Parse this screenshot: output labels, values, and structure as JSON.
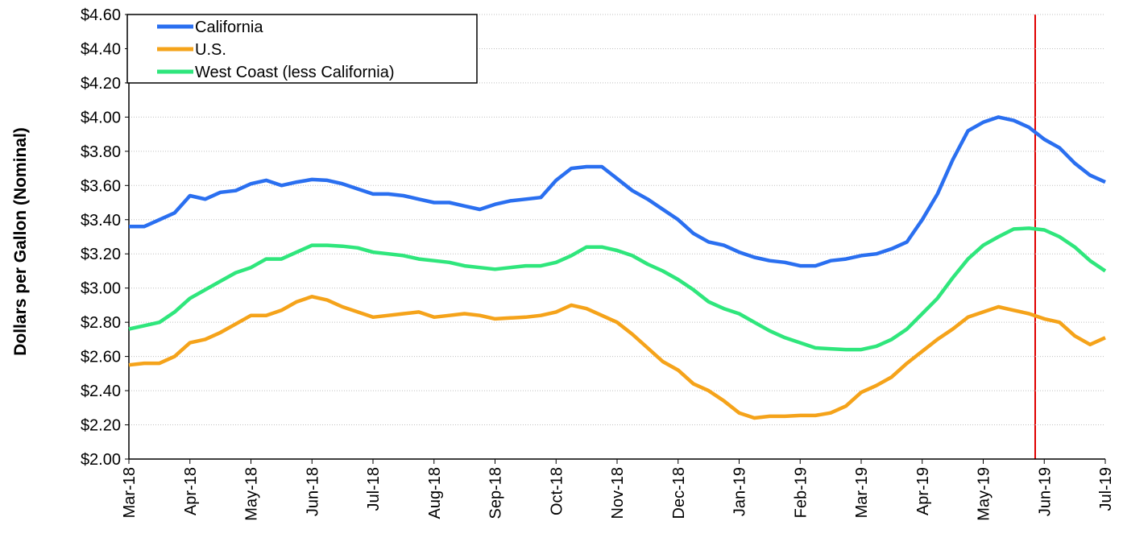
{
  "chart_data": {
    "type": "line",
    "y_label": "Dollars per Gallon (Nominal)",
    "categories": [
      "Mar-18",
      null,
      null,
      null,
      "Apr-18",
      null,
      null,
      null,
      "May-18",
      null,
      null,
      null,
      "Jun-18",
      null,
      null,
      null,
      "Jul-18",
      null,
      null,
      null,
      "Aug-18",
      null,
      null,
      null,
      "Sep-18",
      null,
      null,
      null,
      "Oct-18",
      null,
      null,
      null,
      "Nov-18",
      null,
      null,
      null,
      "Dec-18",
      null,
      null,
      null,
      "Jan-19",
      null,
      null,
      null,
      "Feb-19",
      null,
      null,
      null,
      "Mar-19",
      null,
      null,
      null,
      "Apr-19",
      null,
      null,
      null,
      "May-19",
      null,
      null,
      null,
      "Jun-19",
      null,
      null,
      null,
      "Jul-19"
    ],
    "series": [
      {
        "name": "California",
        "color": "#2a6ff0",
        "values": [
          3.36,
          3.36,
          3.4,
          3.44,
          3.54,
          3.52,
          3.56,
          3.57,
          3.61,
          3.63,
          3.6,
          3.62,
          3.635,
          3.63,
          3.61,
          3.58,
          3.55,
          3.55,
          3.54,
          3.52,
          3.5,
          3.5,
          3.48,
          3.46,
          3.49,
          3.51,
          3.52,
          3.53,
          3.63,
          3.7,
          3.71,
          3.71,
          3.64,
          3.57,
          3.52,
          3.46,
          3.4,
          3.32,
          3.27,
          3.25,
          3.21,
          3.18,
          3.16,
          3.15,
          3.13,
          3.13,
          3.16,
          3.17,
          3.19,
          3.2,
          3.23,
          3.27,
          3.4,
          3.55,
          3.75,
          3.92,
          3.97,
          4.0,
          3.98,
          3.94,
          3.87,
          3.82,
          3.73,
          3.66,
          3.62
        ]
      },
      {
        "name": "U.S.",
        "color": "#f5a31a",
        "values": [
          2.55,
          2.56,
          2.56,
          2.6,
          2.68,
          2.7,
          2.74,
          2.79,
          2.84,
          2.84,
          2.87,
          2.92,
          2.95,
          2.93,
          2.89,
          2.86,
          2.83,
          2.84,
          2.85,
          2.86,
          2.83,
          2.84,
          2.85,
          2.84,
          2.82,
          2.825,
          2.83,
          2.84,
          2.86,
          2.9,
          2.88,
          2.84,
          2.8,
          2.73,
          2.65,
          2.57,
          2.52,
          2.44,
          2.4,
          2.34,
          2.27,
          2.24,
          2.25,
          2.25,
          2.255,
          2.255,
          2.27,
          2.31,
          2.39,
          2.43,
          2.48,
          2.56,
          2.63,
          2.7,
          2.76,
          2.83,
          2.86,
          2.89,
          2.87,
          2.85,
          2.82,
          2.8,
          2.72,
          2.67,
          2.71
        ]
      },
      {
        "name": "West Coast (less California)",
        "color": "#2fe67c",
        "values": [
          2.76,
          2.78,
          2.8,
          2.86,
          2.94,
          2.99,
          3.04,
          3.09,
          3.12,
          3.17,
          3.17,
          3.21,
          3.25,
          3.25,
          3.245,
          3.235,
          3.21,
          3.2,
          3.19,
          3.17,
          3.16,
          3.15,
          3.13,
          3.12,
          3.11,
          3.12,
          3.13,
          3.13,
          3.15,
          3.19,
          3.24,
          3.24,
          3.22,
          3.19,
          3.14,
          3.1,
          3.05,
          2.99,
          2.92,
          2.88,
          2.85,
          2.8,
          2.75,
          2.71,
          2.68,
          2.65,
          2.645,
          2.64,
          2.64,
          2.66,
          2.7,
          2.76,
          2.85,
          2.94,
          3.06,
          3.17,
          3.25,
          3.3,
          3.345,
          3.35,
          3.34,
          3.3,
          3.24,
          3.16,
          3.1
        ]
      }
    ],
    "ylim": [
      2,
      4.6
    ],
    "yticks": [
      {
        "value": 2,
        "label": "$2.00"
      },
      {
        "value": 2.2,
        "label": "$2.20"
      },
      {
        "value": 2.4,
        "label": "$2.40"
      },
      {
        "value": 2.6,
        "label": "$2.60"
      },
      {
        "value": 2.8,
        "label": "$2.80"
      },
      {
        "value": 3,
        "label": "$3.00"
      },
      {
        "value": 3.2,
        "label": "$3.20"
      },
      {
        "value": 3.4,
        "label": "$3.40"
      },
      {
        "value": 3.6,
        "label": "$3.60"
      },
      {
        "value": 3.8,
        "label": "$3.80"
      },
      {
        "value": 4,
        "label": "$4.00"
      },
      {
        "value": 4.2,
        "label": "$4.20"
      },
      {
        "value": 4.4,
        "label": "$4.40"
      },
      {
        "value": 4.6,
        "label": "$4.60"
      }
    ],
    "grid": true,
    "legend": "top-left"
  }
}
